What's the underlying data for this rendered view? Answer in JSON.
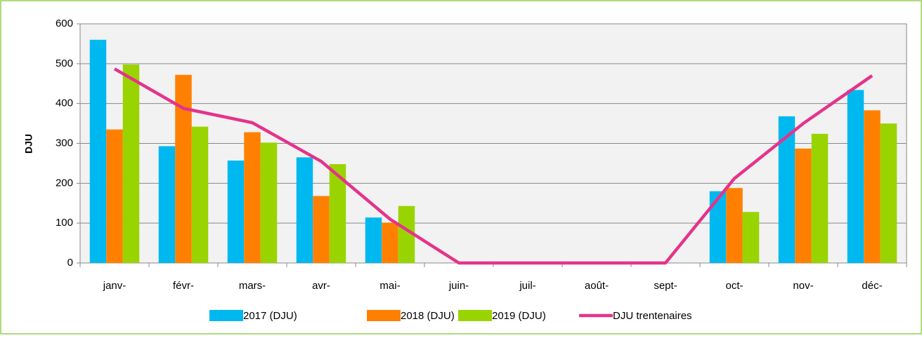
{
  "chart_data": {
    "type": "bar+line",
    "ylabel": "DJU",
    "categories": [
      "janv-",
      "févr-",
      "mars-",
      "avr-",
      "mai-",
      "juin-",
      "juil-",
      "août-",
      "sept-",
      "oct-",
      "nov-",
      "déc-"
    ],
    "series": [
      {
        "name": "2017 (DJU)",
        "type": "bar",
        "color": "#00b8f0",
        "values": [
          560,
          293,
          257,
          265,
          114,
          null,
          null,
          null,
          null,
          180,
          368,
          434
        ]
      },
      {
        "name": "2018 (DJU)",
        "type": "bar",
        "color": "#ff8000",
        "values": [
          335,
          472,
          328,
          168,
          101,
          null,
          null,
          null,
          null,
          188,
          287,
          383
        ]
      },
      {
        "name": "2019 (DJU)",
        "type": "bar",
        "color": "#99d400",
        "values": [
          498,
          342,
          302,
          248,
          143,
          null,
          null,
          null,
          null,
          128,
          324,
          350
        ]
      },
      {
        "name": "DJU trentenaires",
        "type": "line",
        "color": "#e5338a",
        "values": [
          487,
          388,
          352,
          255,
          110,
          0,
          0,
          0,
          0,
          212,
          350,
          470
        ]
      }
    ],
    "ylim": [
      0,
      600
    ],
    "yticks": [
      0,
      100,
      200,
      300,
      400,
      500,
      600
    ],
    "grid": true
  }
}
